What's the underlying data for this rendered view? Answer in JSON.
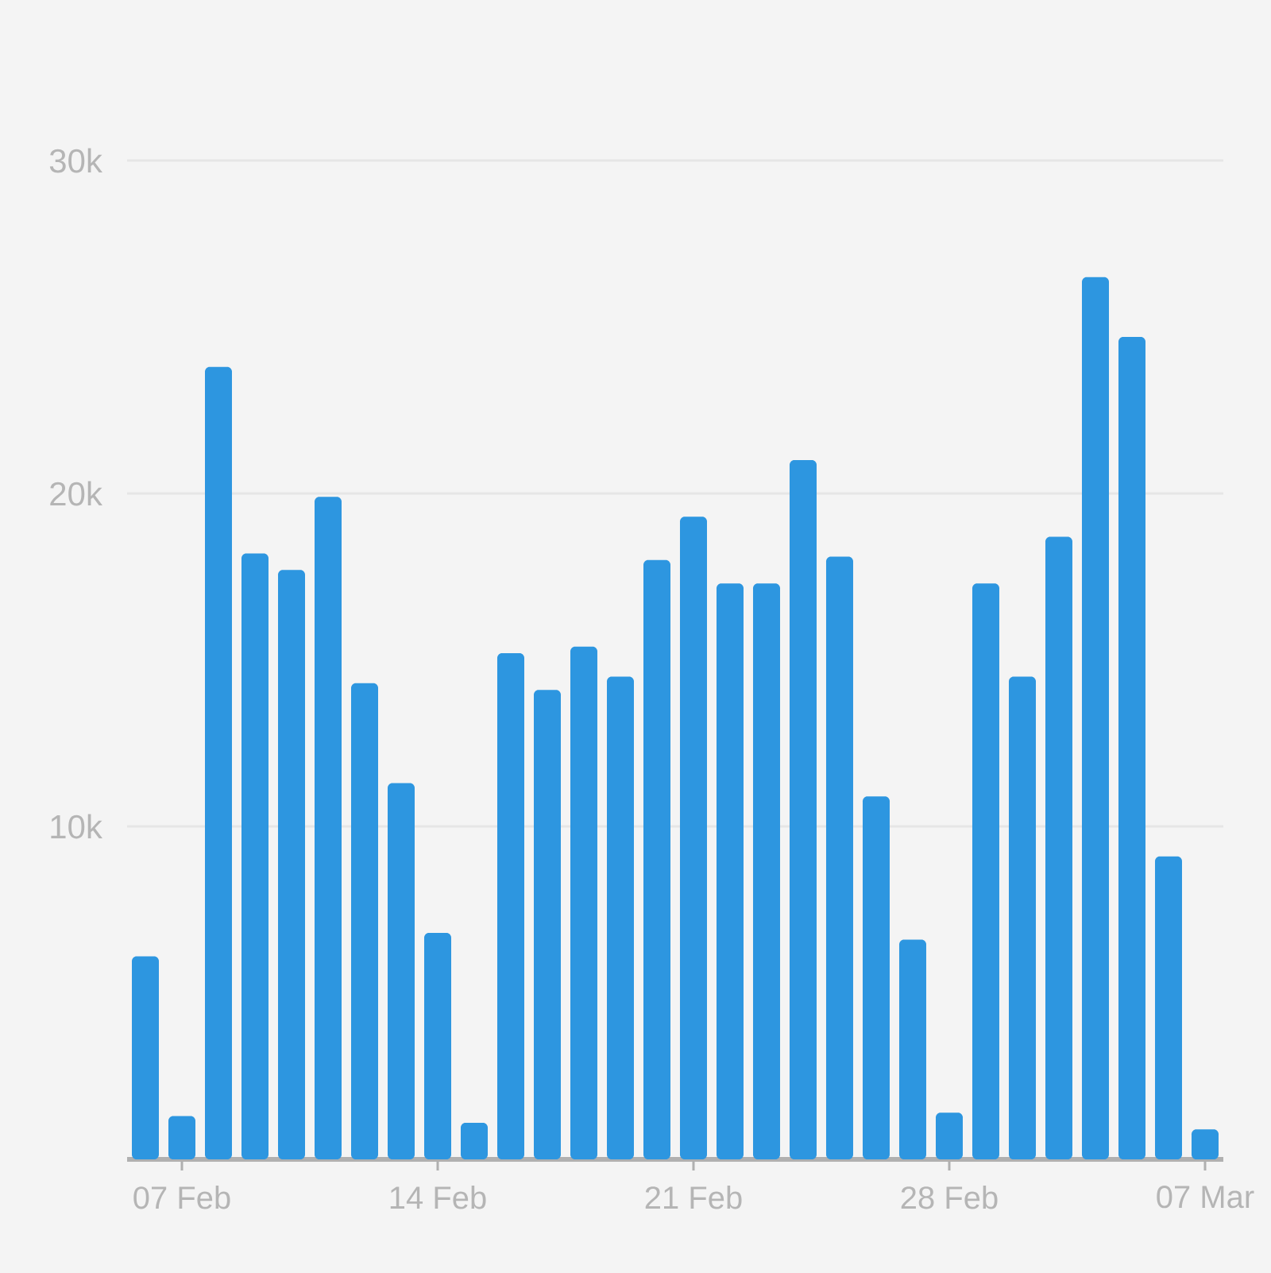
{
  "chart_data": {
    "type": "bar",
    "categories": [
      null,
      "07 Feb",
      null,
      null,
      null,
      null,
      null,
      null,
      "14 Feb",
      null,
      null,
      null,
      null,
      null,
      null,
      "21 Feb",
      null,
      null,
      null,
      null,
      null,
      null,
      "28 Feb",
      null,
      null,
      null,
      null,
      null,
      null,
      "07 Mar"
    ],
    "values": [
      6100,
      1300,
      23800,
      18200,
      17700,
      19900,
      14300,
      11300,
      6800,
      1100,
      15200,
      14100,
      15400,
      14500,
      18000,
      19300,
      17300,
      17300,
      21000,
      18100,
      10900,
      6600,
      1400,
      17300,
      14500,
      18700,
      26500,
      24700,
      9100,
      900
    ],
    "color": "#2d96e0",
    "ylim": [
      0,
      30000
    ],
    "yticks": [
      {
        "value": 10000,
        "label": "10k"
      },
      {
        "value": 20000,
        "label": "20k"
      },
      {
        "value": 30000,
        "label": "30k"
      }
    ],
    "grid": "y"
  }
}
